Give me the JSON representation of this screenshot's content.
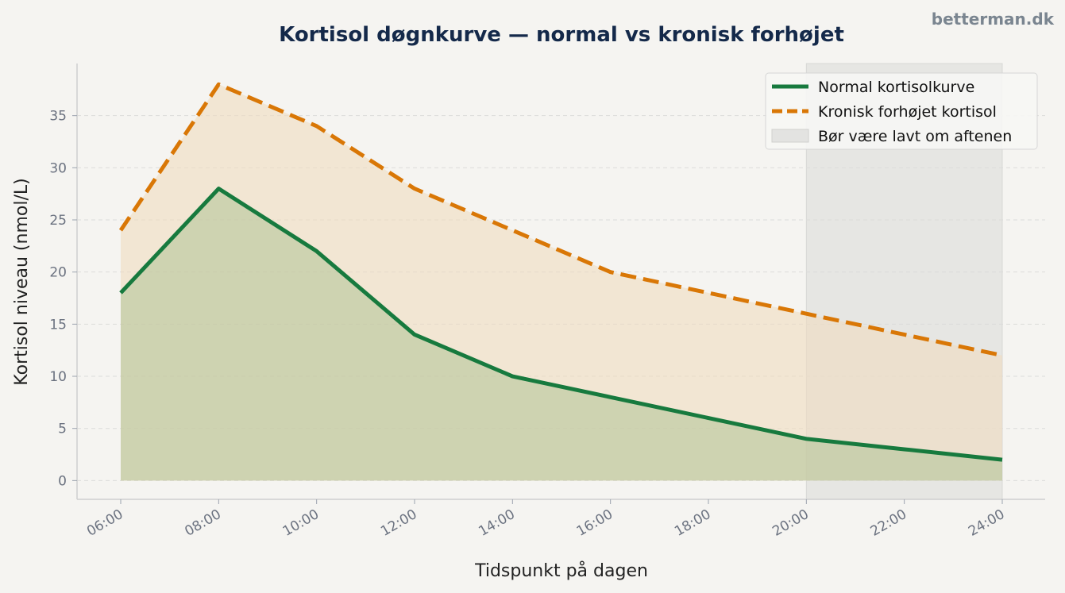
{
  "watermark": "betterman.dk",
  "chart_data": {
    "type": "line",
    "title": "Kortisol døgnkurve — normal vs kronisk forhøjet",
    "xlabel": "Tidspunkt på dagen",
    "ylabel": "Kortisol niveau (nmol/L)",
    "x": [
      "06:00",
      "08:00",
      "10:00",
      "12:00",
      "14:00",
      "16:00",
      "18:00",
      "20:00",
      "22:00",
      "24:00"
    ],
    "y_ticks": [
      0,
      5,
      10,
      15,
      20,
      25,
      30,
      35
    ],
    "ylim": [
      -1.8,
      40
    ],
    "grid": "horizontal dashed",
    "legend_position": "top-right",
    "series": [
      {
        "name": "Normal kortisolkurve",
        "values": [
          18,
          28,
          22,
          14,
          10,
          8,
          6,
          4,
          3,
          2
        ],
        "color": "#177a3e",
        "style": "solid",
        "fill": true
      },
      {
        "name": "Kronisk forhøjet kortisol",
        "values": [
          24,
          38,
          34,
          28,
          24,
          20,
          18,
          16,
          14,
          12
        ],
        "color": "#d97706",
        "style": "dashed",
        "fill": true
      }
    ],
    "shaded_region": {
      "name": "Bør være lavt om aftenen",
      "x_start": "20:00",
      "x_end": "24:00",
      "color": "#c8c8c8"
    }
  }
}
